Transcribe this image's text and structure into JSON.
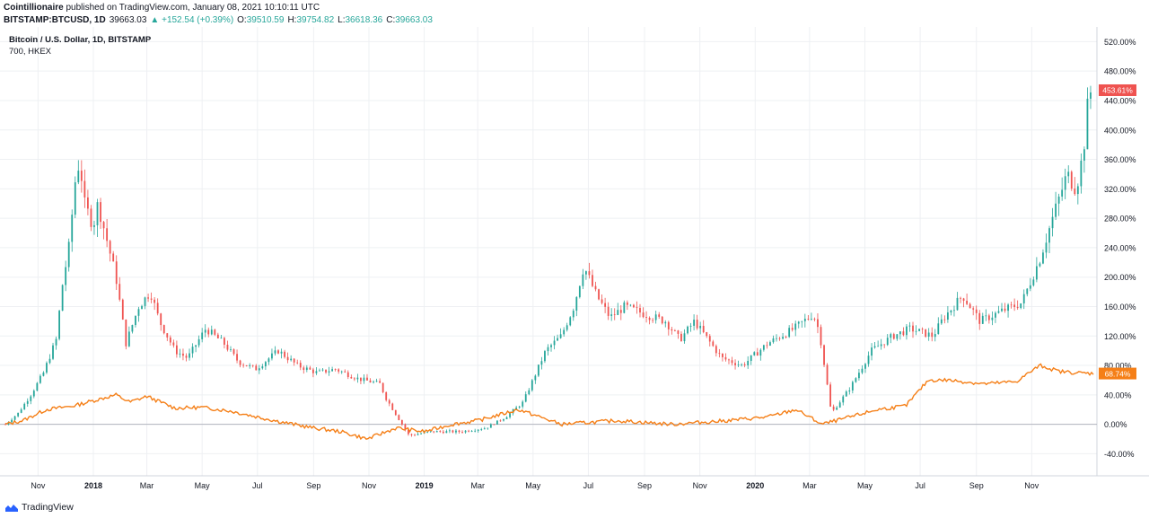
{
  "header": {
    "publisher": "Cointillionaire",
    "published_text": "published on TradingView.com, January 08, 2021 10:10:11 UTC",
    "symbol": "BITSTAMP:BTCUSD, 1D",
    "last": "39663.03",
    "change": "▲ +152.54 (+0.39%)",
    "o_label": "O:",
    "o_value": "39510.59",
    "h_label": "H:",
    "h_value": "39754.82",
    "l_label": "L:",
    "l_value": "36618.36",
    "c_label": "C:",
    "c_value": "39663.03"
  },
  "legend": {
    "main_title": "Bitcoin / U.S. Dollar, 1D, BITSTAMP",
    "compare": "700, HKEX"
  },
  "footer": {
    "brand": "TradingView"
  },
  "colors": {
    "up": "#26a69a",
    "down": "#ef5350",
    "compare": "#f57f17",
    "btc_label_bg": "#ef5350",
    "hk_label_bg": "#f57f17",
    "grid": "#eef0f3",
    "axis_text": "#131722"
  },
  "chart_data": {
    "type": "line",
    "title": "Bitcoin / U.S. Dollar, 1D, BITSTAMP",
    "xlabel": "",
    "ylabel": "",
    "y_unit": "percent change",
    "ylim": [
      -70,
      540
    ],
    "y_ticks": [
      -40,
      0,
      40,
      80,
      120,
      160,
      200,
      240,
      280,
      320,
      360,
      400,
      440,
      480,
      520
    ],
    "y_tick_labels": [
      "-40.00%",
      "0.00%",
      "40.00%",
      "80.00%",
      "120.00%",
      "160.00%",
      "200.00%",
      "240.00%",
      "280.00%",
      "320.00%",
      "360.00%",
      "400.00%",
      "440.00%",
      "480.00%",
      "520.00%"
    ],
    "x_tick_labels": [
      "Nov",
      "2018",
      "Mar",
      "May",
      "Jul",
      "Sep",
      "Nov",
      "2019",
      "Mar",
      "May",
      "Jul",
      "Sep",
      "Nov",
      "2020",
      "Mar",
      "May",
      "Jul",
      "Sep",
      "Nov"
    ],
    "x_tick_dates": [
      "2017-11-01",
      "2018-01-01",
      "2018-03-01",
      "2018-05-01",
      "2018-07-01",
      "2018-09-01",
      "2018-11-01",
      "2019-01-01",
      "2019-03-01",
      "2019-05-01",
      "2019-07-01",
      "2019-09-01",
      "2019-11-01",
      "2020-01-01",
      "2020-03-01",
      "2020-05-01",
      "2020-07-01",
      "2020-09-01",
      "2020-11-01"
    ],
    "x_range": [
      "2017-09-26",
      "2021-01-08"
    ],
    "grid": true,
    "legend_position": "top-left",
    "series": [
      {
        "name": "Bitcoin / U.S. Dollar, 1D, BITSTAMP",
        "style": "candles",
        "last_label": "453.61%",
        "x": [
          "2017-09-26",
          "2017-10-10",
          "2017-10-24",
          "2017-11-07",
          "2017-11-21",
          "2017-11-28",
          "2017-12-05",
          "2017-12-12",
          "2017-12-17",
          "2017-12-22",
          "2018-01-01",
          "2018-01-06",
          "2018-01-16",
          "2018-01-26",
          "2018-02-06",
          "2018-02-20",
          "2018-03-05",
          "2018-03-15",
          "2018-04-01",
          "2018-04-15",
          "2018-05-05",
          "2018-05-25",
          "2018-06-10",
          "2018-06-29",
          "2018-07-24",
          "2018-08-14",
          "2018-09-05",
          "2018-09-25",
          "2018-10-20",
          "2018-11-13",
          "2018-11-20",
          "2018-12-15",
          "2019-01-10",
          "2019-02-10",
          "2019-03-10",
          "2019-04-01",
          "2019-04-20",
          "2019-05-15",
          "2019-06-01",
          "2019-06-15",
          "2019-06-26",
          "2019-07-10",
          "2019-07-25",
          "2019-08-10",
          "2019-09-01",
          "2019-09-24",
          "2019-10-10",
          "2019-10-26",
          "2019-11-25",
          "2019-12-18",
          "2020-01-15",
          "2020-02-13",
          "2020-03-05",
          "2020-03-12",
          "2020-03-25",
          "2020-04-15",
          "2020-05-08",
          "2020-06-01",
          "2020-06-20",
          "2020-07-15",
          "2020-07-27",
          "2020-08-17",
          "2020-09-05",
          "2020-10-01",
          "2020-10-21",
          "2020-11-10",
          "2020-11-24",
          "2020-12-10",
          "2020-12-20",
          "2020-12-28",
          "2021-01-03",
          "2021-01-08"
        ],
        "values": [
          0,
          15,
          40,
          70,
          115,
          190,
          240,
          330,
          360,
          300,
          270,
          300,
          250,
          200,
          110,
          160,
          180,
          140,
          100,
          90,
          130,
          110,
          85,
          75,
          100,
          80,
          70,
          75,
          62,
          55,
          35,
          -15,
          -10,
          -10,
          -5,
          10,
          30,
          100,
          120,
          160,
          215,
          175,
          145,
          160,
          150,
          140,
          115,
          140,
          90,
          80,
          110,
          130,
          150,
          125,
          15,
          50,
          100,
          120,
          130,
          120,
          145,
          175,
          140,
          155,
          165,
          225,
          280,
          340,
          320,
          370,
          450,
          454
        ]
      },
      {
        "name": "700, HKEX",
        "style": "line",
        "last_label": "68.74%",
        "x": [
          "2017-09-26",
          "2017-10-15",
          "2017-11-10",
          "2017-12-10",
          "2018-01-10",
          "2018-01-26",
          "2018-02-10",
          "2018-03-01",
          "2018-04-01",
          "2018-05-01",
          "2018-06-01",
          "2018-07-01",
          "2018-08-01",
          "2018-09-01",
          "2018-10-01",
          "2018-10-30",
          "2018-12-01",
          "2019-01-01",
          "2019-02-01",
          "2019-03-01",
          "2019-04-15",
          "2019-06-01",
          "2019-08-01",
          "2019-10-01",
          "2019-12-01",
          "2020-01-15",
          "2020-02-15",
          "2020-03-15",
          "2020-04-15",
          "2020-05-15",
          "2020-06-15",
          "2020-07-10",
          "2020-08-01",
          "2020-09-10",
          "2020-10-15",
          "2020-11-10",
          "2020-12-01",
          "2020-12-20",
          "2021-01-08"
        ],
        "values": [
          0,
          5,
          20,
          25,
          35,
          40,
          30,
          38,
          22,
          23,
          18,
          10,
          2,
          -5,
          -10,
          -20,
          -5,
          -10,
          0,
          5,
          20,
          0,
          5,
          0,
          5,
          10,
          20,
          0,
          10,
          20,
          25,
          60,
          60,
          55,
          58,
          80,
          72,
          70,
          69
        ]
      }
    ]
  }
}
